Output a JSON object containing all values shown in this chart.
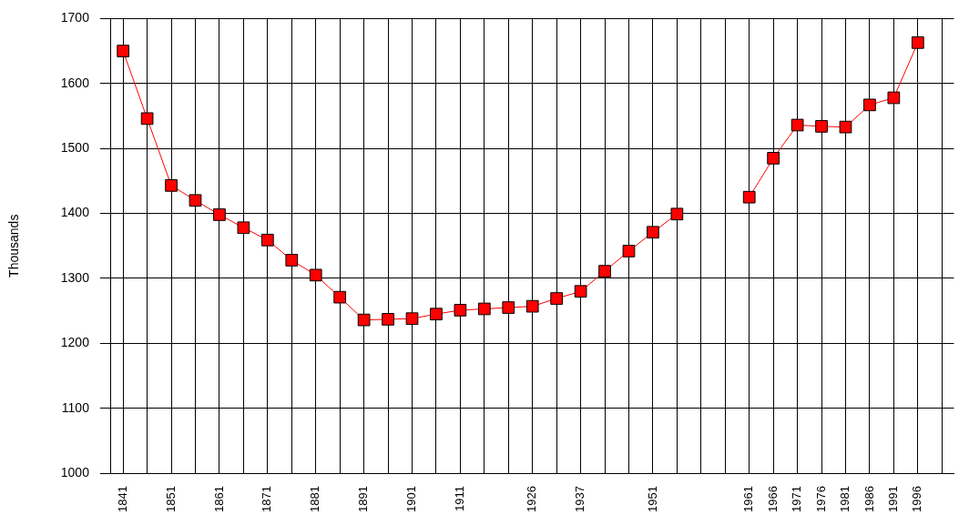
{
  "chart_data": {
    "type": "line",
    "ylabel": "Thousands",
    "categories": [
      "1841",
      null,
      "1851",
      null,
      "1861",
      null,
      "1871",
      null,
      "1881",
      null,
      "1891",
      null,
      "1901",
      null,
      "1911",
      null,
      null,
      "1926",
      null,
      "1937",
      null,
      null,
      "1951",
      null,
      null,
      null,
      "1961",
      "1966",
      "1971",
      "1976",
      "1981",
      "1986",
      "1991",
      "1996",
      null
    ],
    "series": [
      {
        "color": "#ff0000",
        "values": [
          1650,
          1546,
          1443,
          1420,
          1398,
          1378,
          1359,
          1328,
          1305,
          1271,
          1236,
          1237,
          1238,
          1245,
          1251,
          1253,
          1255,
          1257,
          1269,
          1280,
          1311,
          1342,
          1371,
          1399,
          null,
          null,
          1425,
          1485,
          1536,
          1534,
          1533,
          1567,
          1578,
          1663,
          null
        ]
      }
    ],
    "ylim": [
      1000,
      1700
    ],
    "yticks": [
      1000,
      1100,
      1200,
      1300,
      1400,
      1500,
      1600,
      1700
    ],
    "grid": true,
    "legend": false,
    "marker": "square",
    "line_style": "solid"
  }
}
